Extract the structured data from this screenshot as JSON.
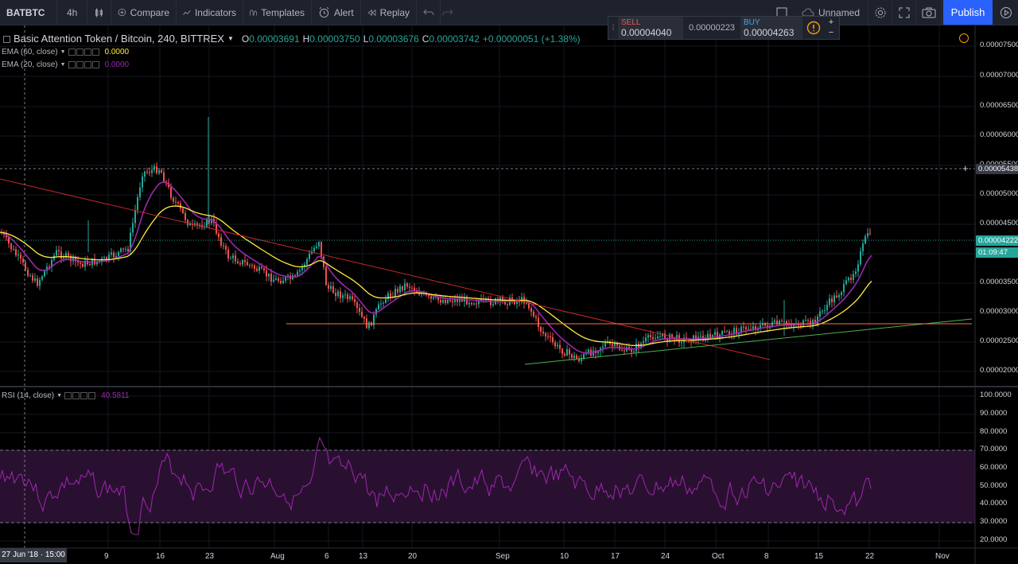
{
  "toolbar": {
    "symbol": "BATBTC",
    "interval": "4h",
    "compare": "Compare",
    "indicators": "Indicators",
    "templates": "Templates",
    "alert": "Alert",
    "replay": "Replay",
    "layout_name": "Unnamed",
    "publish": "Publish"
  },
  "trade_widget": {
    "sell_label": "SELL",
    "sell_price": "0.00004040",
    "spread": "0.00000223",
    "buy_label": "BUY",
    "buy_price": "0.00004263",
    "plus": "+",
    "minus": "−"
  },
  "legend": {
    "title": "Basic Attention Token / Bitcoin, 240, BITTREX",
    "o_label": "O",
    "o": "0.00003691",
    "h_label": "H",
    "h": "0.00003750",
    "l_label": "L",
    "l": "0.00003676",
    "c_label": "C",
    "c": "0.00003742",
    "change": "+0.00000051 (+1.38%)"
  },
  "indicators": [
    {
      "name": "EMA (60, close)",
      "value": "0.0000",
      "color": "#ffeb3b"
    },
    {
      "name": "EMA (20, close)",
      "value": "0.0000",
      "color": "#9c27b0"
    }
  ],
  "rsi": {
    "name": "RSI (14, close)",
    "value": "40.5811",
    "color": "#9c27b0"
  },
  "price_axis": {
    "labels": [
      "0.00007500",
      "0.00007000",
      "0.00006500",
      "0.00006000",
      "0.00005500",
      "0.00005000",
      "0.00004500",
      "0.00004000",
      "0.00003500",
      "0.00003000",
      "0.00002500",
      "0.00002000"
    ],
    "crosshair_price": "0.00005438",
    "last_price": "0.00004222",
    "countdown": "01:09:47"
  },
  "rsi_axis": {
    "labels": [
      "100.0000",
      "90.0000",
      "80.0000",
      "70.0000",
      "60.0000",
      "50.0000",
      "40.0000",
      "30.0000",
      "20.0000"
    ]
  },
  "time_axis": {
    "crosshair_date": "27 Jun '18 · 15:00",
    "labels": [
      "9",
      "16",
      "23",
      "Aug",
      "6",
      "13",
      "20",
      "Sep",
      "10",
      "17",
      "24",
      "Oct",
      "8",
      "15",
      "22",
      "Nov"
    ]
  },
  "colors": {
    "up": "#26a69a",
    "down": "#ef5350",
    "ema60": "#ffeb3b",
    "ema20": "#9c27b0",
    "trend_red": "#c62828",
    "trend_green": "#4caf50",
    "support": "#ff7043"
  }
}
